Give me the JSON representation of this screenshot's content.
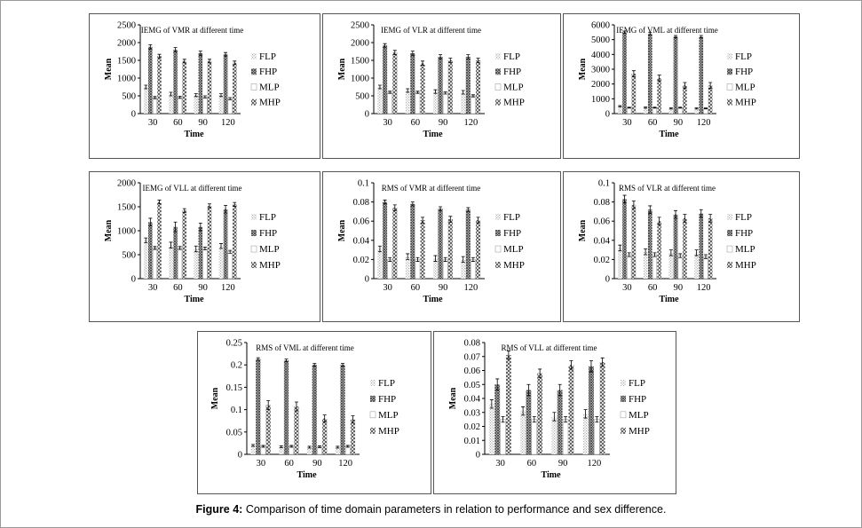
{
  "caption": {
    "label": "Figure 4:",
    "text": " Comparison of time domain parameters in relation to performance and sex difference."
  },
  "legend_names": [
    "FLP",
    "FHP",
    "MLP",
    "MHP"
  ],
  "colors": {
    "bar_fill": "#4a4a4a",
    "bar_light": "#b0b0b0",
    "axis": "#000000",
    "panel_border": "#555555"
  },
  "chart_data": [
    {
      "type": "bar",
      "title": "IEMG of VMR at different time",
      "xlabel": "Time",
      "ylabel": "Mean",
      "categories": [
        "30",
        "60",
        "90",
        "120"
      ],
      "ylim": [
        0,
        2500
      ],
      "yticks": [
        "0",
        "500",
        "1000",
        "1500",
        "2000",
        "2500"
      ],
      "grid": false,
      "legend": "right",
      "series": [
        {
          "name": "FLP",
          "values": [
            750,
            550,
            520,
            520
          ],
          "errors": [
            50,
            50,
            40,
            40
          ]
        },
        {
          "name": "FHP",
          "values": [
            1880,
            1800,
            1700,
            1670
          ],
          "errors": [
            60,
            60,
            60,
            50
          ]
        },
        {
          "name": "MLP",
          "values": [
            450,
            460,
            470,
            420
          ],
          "errors": [
            30,
            30,
            30,
            30
          ]
        },
        {
          "name": "MHP",
          "values": [
            1620,
            1480,
            1480,
            1430
          ],
          "errors": [
            50,
            50,
            50,
            50
          ]
        }
      ]
    },
    {
      "type": "bar",
      "title": "IEMG of VLR at different time",
      "xlabel": "Time",
      "ylabel": "Mean",
      "categories": [
        "30",
        "60",
        "90",
        "120"
      ],
      "ylim": [
        0,
        2500
      ],
      "yticks": [
        "0",
        "500",
        "1000",
        "1500",
        "2000",
        "2500"
      ],
      "grid": false,
      "legend": "right",
      "series": [
        {
          "name": "FLP",
          "values": [
            750,
            650,
            620,
            600
          ],
          "errors": [
            50,
            50,
            50,
            50
          ]
        },
        {
          "name": "FHP",
          "values": [
            1920,
            1700,
            1600,
            1600
          ],
          "errors": [
            50,
            60,
            60,
            60
          ]
        },
        {
          "name": "MLP",
          "values": [
            600,
            600,
            580,
            500
          ],
          "errors": [
            30,
            30,
            30,
            30
          ]
        },
        {
          "name": "MHP",
          "values": [
            1720,
            1420,
            1500,
            1500
          ],
          "errors": [
            60,
            60,
            60,
            60
          ]
        }
      ]
    },
    {
      "type": "bar",
      "title": "IEMG of VML at different time",
      "xlabel": "Time",
      "ylabel": "Mean",
      "categories": [
        "30",
        "60",
        "90",
        "120"
      ],
      "ylim": [
        0,
        6000
      ],
      "yticks": [
        "0",
        "1000",
        "2000",
        "3000",
        "4000",
        "5000",
        "6000"
      ],
      "grid": false,
      "legend": "right",
      "series": [
        {
          "name": "FLP",
          "values": [
            500,
            400,
            350,
            350
          ],
          "errors": [
            40,
            40,
            40,
            40
          ]
        },
        {
          "name": "FHP",
          "values": [
            5500,
            5400,
            5200,
            5200
          ],
          "errors": [
            80,
            80,
            80,
            80
          ]
        },
        {
          "name": "MLP",
          "values": [
            400,
            400,
            400,
            350
          ],
          "errors": [
            30,
            30,
            30,
            30
          ]
        },
        {
          "name": "MHP",
          "values": [
            2700,
            2400,
            1900,
            1900
          ],
          "errors": [
            200,
            200,
            200,
            200
          ]
        }
      ]
    },
    {
      "type": "bar",
      "title": "IEMG of VLL at different time",
      "xlabel": "Time",
      "ylabel": "Mean",
      "categories": [
        "30",
        "60",
        "90",
        "120"
      ],
      "ylim": [
        0,
        2000
      ],
      "yticks": [
        "0",
        "500",
        "1000",
        "1500",
        "2000"
      ],
      "grid": false,
      "legend": "right",
      "series": [
        {
          "name": "FLP",
          "values": [
            800,
            700,
            620,
            680
          ],
          "errors": [
            50,
            60,
            60,
            50
          ]
        },
        {
          "name": "FHP",
          "values": [
            1180,
            1080,
            1080,
            1450
          ],
          "errors": [
            80,
            100,
            80,
            80
          ]
        },
        {
          "name": "MLP",
          "values": [
            640,
            640,
            630,
            560
          ],
          "errors": [
            30,
            30,
            30,
            30
          ]
        },
        {
          "name": "MHP",
          "values": [
            1600,
            1420,
            1520,
            1550
          ],
          "errors": [
            40,
            40,
            40,
            40
          ]
        }
      ]
    },
    {
      "type": "bar",
      "title": "RMS of VMR at different time",
      "xlabel": "Time",
      "ylabel": "Mean",
      "categories": [
        "30",
        "60",
        "90",
        "120"
      ],
      "ylim": [
        0,
        0.1
      ],
      "yticks": [
        "0",
        "0.02",
        "0.04",
        "0.06",
        "0.08",
        "0.1"
      ],
      "grid": false,
      "legend": "right",
      "series": [
        {
          "name": "FLP",
          "values": [
            0.031,
            0.023,
            0.021,
            0.02
          ],
          "errors": [
            0.003,
            0.003,
            0.003,
            0.003
          ]
        },
        {
          "name": "FHP",
          "values": [
            0.08,
            0.078,
            0.073,
            0.072
          ],
          "errors": [
            0.002,
            0.002,
            0.002,
            0.002
          ]
        },
        {
          "name": "MLP",
          "values": [
            0.02,
            0.02,
            0.02,
            0.02
          ],
          "errors": [
            0.002,
            0.002,
            0.002,
            0.002
          ]
        },
        {
          "name": "MHP",
          "values": [
            0.074,
            0.061,
            0.062,
            0.061
          ],
          "errors": [
            0.003,
            0.003,
            0.003,
            0.003
          ]
        }
      ]
    },
    {
      "type": "bar",
      "title": "RMS of VLR at different time",
      "xlabel": "Time",
      "ylabel": "Mean",
      "categories": [
        "30",
        "60",
        "90",
        "120"
      ],
      "ylim": [
        0,
        0.1
      ],
      "yticks": [
        "0",
        "0.02",
        "0.04",
        "0.06",
        "0.08",
        "0.1"
      ],
      "grid": false,
      "legend": "right",
      "series": [
        {
          "name": "FLP",
          "values": [
            0.032,
            0.028,
            0.027,
            0.027
          ],
          "errors": [
            0.003,
            0.003,
            0.003,
            0.003
          ]
        },
        {
          "name": "FHP",
          "values": [
            0.083,
            0.072,
            0.067,
            0.068
          ],
          "errors": [
            0.004,
            0.004,
            0.004,
            0.004
          ]
        },
        {
          "name": "MLP",
          "values": [
            0.025,
            0.025,
            0.024,
            0.023
          ],
          "errors": [
            0.002,
            0.002,
            0.002,
            0.002
          ]
        },
        {
          "name": "MHP",
          "values": [
            0.077,
            0.06,
            0.063,
            0.063
          ],
          "errors": [
            0.004,
            0.004,
            0.004,
            0.004
          ]
        }
      ]
    },
    {
      "type": "bar",
      "title": "RMS of VML at different time",
      "xlabel": "Time",
      "ylabel": "Mean",
      "categories": [
        "30",
        "60",
        "90",
        "120"
      ],
      "ylim": [
        0,
        0.25
      ],
      "yticks": [
        "0",
        "0.05",
        "0.1",
        "0.15",
        "0.2",
        "0.25"
      ],
      "grid": false,
      "legend": "right",
      "series": [
        {
          "name": "FLP",
          "values": [
            0.02,
            0.017,
            0.016,
            0.016
          ],
          "errors": [
            0.002,
            0.002,
            0.002,
            0.002
          ]
        },
        {
          "name": "FHP",
          "values": [
            0.213,
            0.21,
            0.2,
            0.2
          ],
          "errors": [
            0.003,
            0.003,
            0.003,
            0.003
          ]
        },
        {
          "name": "MLP",
          "values": [
            0.018,
            0.018,
            0.017,
            0.018
          ],
          "errors": [
            0.002,
            0.002,
            0.002,
            0.002
          ]
        },
        {
          "name": "MHP",
          "values": [
            0.11,
            0.107,
            0.08,
            0.078
          ],
          "errors": [
            0.01,
            0.01,
            0.008,
            0.008
          ]
        }
      ]
    },
    {
      "type": "bar",
      "title": "RMS of VLL at different time",
      "xlabel": "Time",
      "ylabel": "Mean",
      "categories": [
        "30",
        "60",
        "90",
        "120"
      ],
      "ylim": [
        0,
        0.08
      ],
      "yticks": [
        "0",
        "0.01",
        "0.02",
        "0.03",
        "0.04",
        "0.05",
        "0.06",
        "0.07",
        "0.08"
      ],
      "grid": false,
      "legend": "right",
      "series": [
        {
          "name": "FLP",
          "values": [
            0.036,
            0.031,
            0.027,
            0.029
          ],
          "errors": [
            0.003,
            0.003,
            0.003,
            0.003
          ]
        },
        {
          "name": "FHP",
          "values": [
            0.05,
            0.046,
            0.046,
            0.063
          ],
          "errors": [
            0.004,
            0.004,
            0.004,
            0.004
          ]
        },
        {
          "name": "MLP",
          "values": [
            0.025,
            0.025,
            0.025,
            0.025
          ],
          "errors": [
            0.002,
            0.002,
            0.002,
            0.002
          ]
        },
        {
          "name": "MHP",
          "values": [
            0.071,
            0.058,
            0.064,
            0.066
          ],
          "errors": [
            0.003,
            0.003,
            0.003,
            0.003
          ]
        }
      ]
    }
  ]
}
